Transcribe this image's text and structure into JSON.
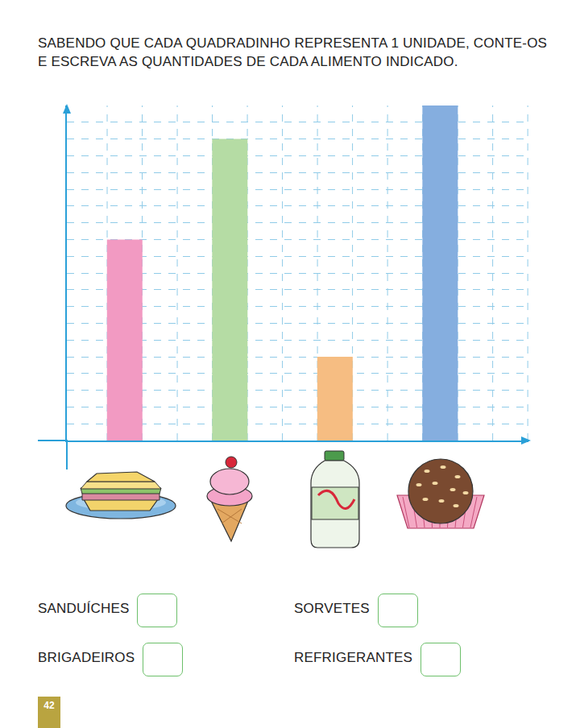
{
  "header": {
    "title_lines": [
      "SABENDO QUE CADA QUADRADINHO REPRESENTA 1 UNIDADE, CONTE-OS",
      "E ESCREVA AS QUANTIDADES DE CADA ALIMENTO INDICADO."
    ]
  },
  "chart_data": {
    "type": "bar",
    "categories": [
      null,
      null,
      null,
      null
    ],
    "values": [
      12,
      18,
      5,
      20
    ],
    "colors": [
      "#f29ac2",
      "#b5dca4",
      "#f6bd82",
      "#85aedf"
    ],
    "ylim": [
      0,
      20
    ],
    "yticks": [
      0,
      1,
      2,
      3,
      4,
      5,
      6,
      7,
      8,
      9,
      10,
      11,
      12,
      13,
      14,
      15,
      16,
      17,
      18,
      19,
      20
    ],
    "grid": true,
    "tick_labels": false
  },
  "answers": [
    [
      "SANDUÍCHES",
      "SORVETES"
    ],
    [
      "BRIGADEIROS",
      "REFRIGERANTES"
    ]
  ],
  "page_number": 42
}
